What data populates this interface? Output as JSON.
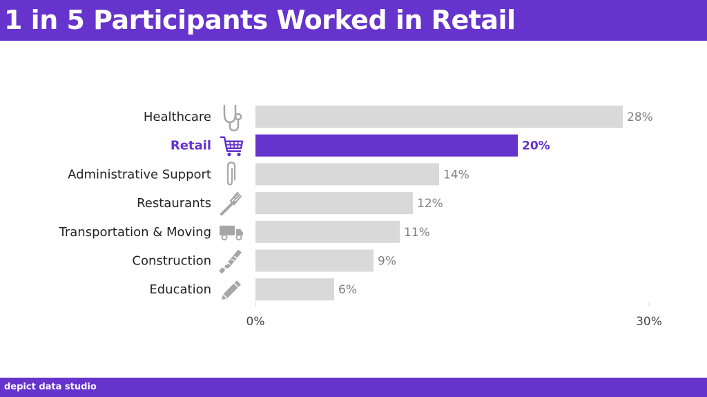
{
  "header": {
    "title": "1 in 5 Participants Worked in Retail"
  },
  "footer": {
    "brand": "depict data studio"
  },
  "colors": {
    "header_bg": "#6633cc",
    "highlight": "#6633cc",
    "bar": "#d9d9d9",
    "label_text": "#222222",
    "value_text": "#7f7f7f",
    "icon": "#a6a6a6"
  },
  "chart_data": {
    "type": "bar",
    "orientation": "horizontal",
    "categories": [
      "Healthcare",
      "Retail",
      "Administrative Support",
      "Restaurants",
      "Transportation & Moving",
      "Construction",
      "Education"
    ],
    "values": [
      28,
      20,
      14,
      12,
      11,
      9,
      6
    ],
    "value_labels": [
      "28%",
      "20%",
      "14%",
      "12%",
      "11%",
      "9%",
      "6%"
    ],
    "icons": [
      "stethoscope-icon",
      "shopping-cart-icon",
      "paperclip-icon",
      "fork-icon",
      "truck-icon",
      "saw-icon",
      "pencil-icon"
    ],
    "highlight": "Retail",
    "xlim": [
      0,
      30
    ],
    "x_ticks": [
      "0%",
      "30%"
    ],
    "grid": false
  }
}
